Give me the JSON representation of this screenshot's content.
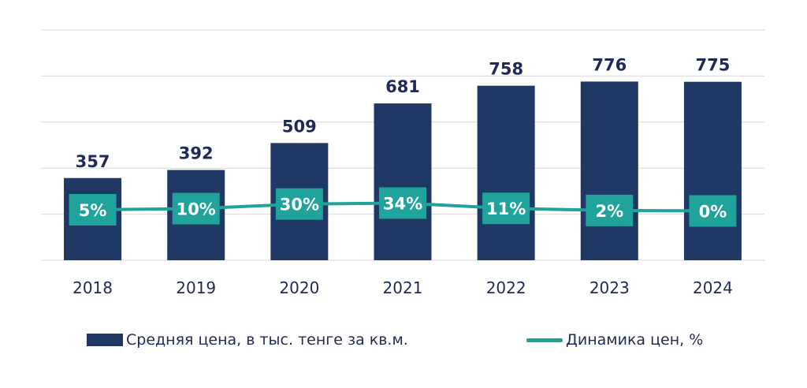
{
  "chart_data": {
    "type": "bar",
    "categories": [
      "2018",
      "2019",
      "2020",
      "2021",
      "2022",
      "2023",
      "2024"
    ],
    "series": [
      {
        "name": "Средняя цена, в тыс. тенге за кв.м.",
        "type": "bar",
        "values": [
          357,
          392,
          509,
          681,
          758,
          776,
          775
        ],
        "labels": [
          "357",
          "392",
          "509",
          "681",
          "758",
          "776",
          "775"
        ]
      },
      {
        "name": "Динамика цен, %",
        "type": "line",
        "values": [
          5,
          10,
          30,
          34,
          11,
          2,
          0
        ],
        "labels": [
          "5%",
          "10%",
          "30%",
          "34%",
          "11%",
          "2%",
          "0%"
        ]
      }
    ],
    "ylim": [
      0,
      1000
    ],
    "grid": true,
    "legend": "bottom"
  },
  "colors": {
    "bar": "#1f3864",
    "line": "#1fa39a",
    "grid": "#d9d9d9",
    "text": "#1f2a5a",
    "label": "#1f2a5a"
  }
}
